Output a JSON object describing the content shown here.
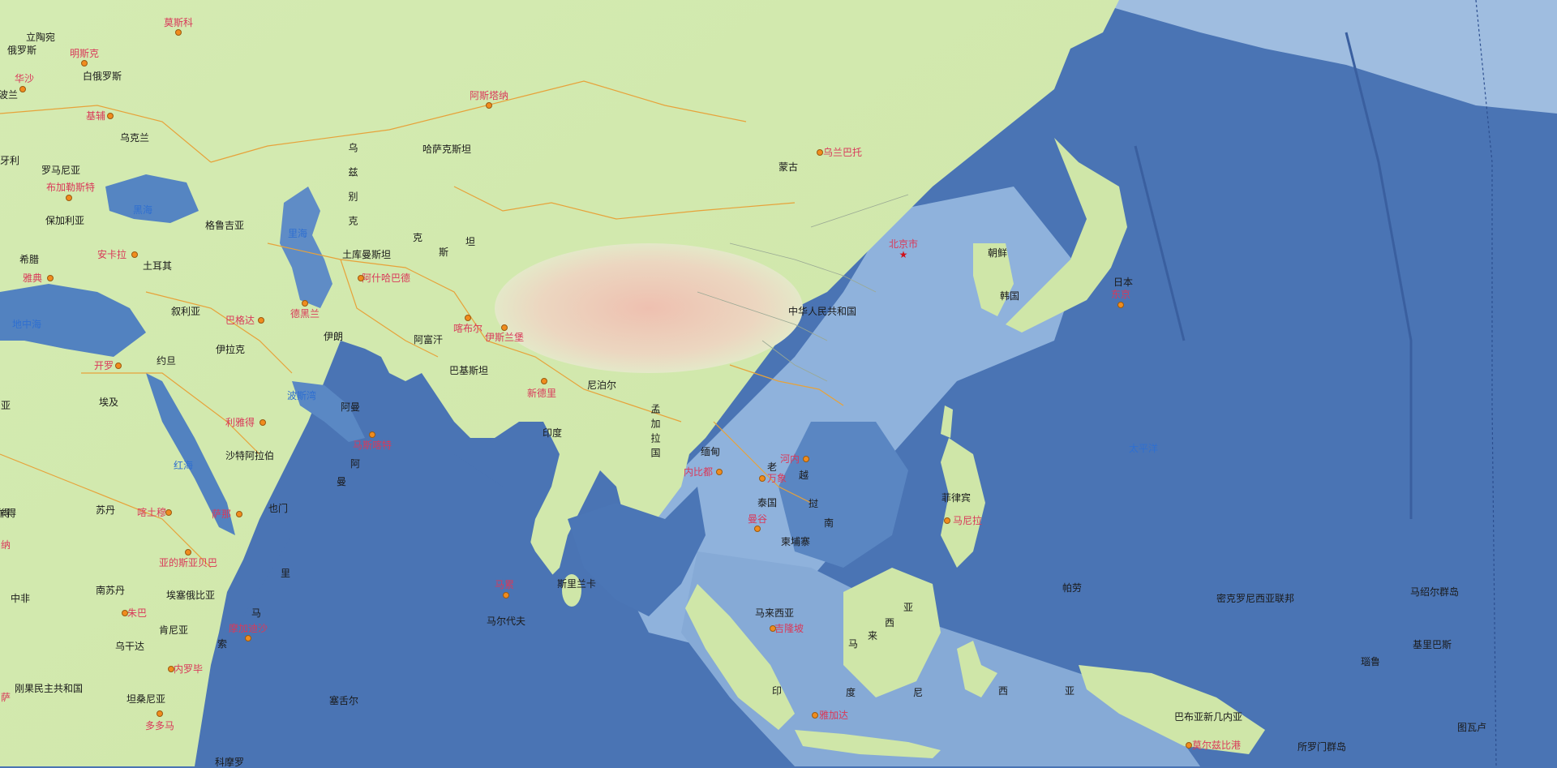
{
  "map": {
    "colors": {
      "ocean": "#4a74b4",
      "deep_ocean": "#3f67aa",
      "shelf": "#9fbfe0",
      "land": "#d8ecb6",
      "plateau": "#e8c9b6",
      "border": "#e7a23a",
      "country_text": "#1a1a1a",
      "city_text": "#d9395a",
      "water_text": "#2f6fd0"
    },
    "labels": {
      "countries": [
        {
          "id": "c01",
          "text": "立陶宛"
        },
        {
          "id": "c02",
          "text": "俄罗斯"
        },
        {
          "id": "c03",
          "text": "白俄罗斯"
        },
        {
          "id": "c04",
          "text": "波兰"
        },
        {
          "id": "c05",
          "text": "乌克兰"
        },
        {
          "id": "c06",
          "text": "牙利"
        },
        {
          "id": "c07",
          "text": "罗马尼亚"
        },
        {
          "id": "c08",
          "text": "保加利亚"
        },
        {
          "id": "c09",
          "text": "希腊"
        },
        {
          "id": "c10",
          "text": "格鲁吉亚"
        },
        {
          "id": "c11",
          "text": "土耳其"
        },
        {
          "id": "c12",
          "text": "叙利亚"
        },
        {
          "id": "c13",
          "text": "伊拉克"
        },
        {
          "id": "c14",
          "text": "约旦"
        },
        {
          "id": "c15",
          "text": "埃及"
        },
        {
          "id": "c16",
          "text": "沙特阿拉伯"
        },
        {
          "id": "c17",
          "text": "伊朗"
        },
        {
          "id": "c18",
          "text": "阿富汗"
        },
        {
          "id": "c19",
          "text": "巴基斯坦"
        },
        {
          "id": "c20",
          "text": "土库曼斯坦"
        },
        {
          "id": "c21",
          "text": "哈萨克斯坦"
        },
        {
          "id": "c22",
          "text": "蒙古"
        },
        {
          "id": "c23",
          "text": "中华人民共和国"
        },
        {
          "id": "c24",
          "text": "朝鲜"
        },
        {
          "id": "c25",
          "text": "韩国"
        },
        {
          "id": "c26",
          "text": "日本"
        },
        {
          "id": "c27",
          "text": "尼泊尔"
        },
        {
          "id": "c28",
          "text": "印度"
        },
        {
          "id": "c29",
          "text": "缅甸"
        },
        {
          "id": "c30",
          "text": "泰国"
        },
        {
          "id": "c31",
          "text": "柬埔寨"
        },
        {
          "id": "c32",
          "text": "菲律宾"
        },
        {
          "id": "c33",
          "text": "马来西亚"
        },
        {
          "id": "c34",
          "text": "斯里兰卡"
        },
        {
          "id": "c35",
          "text": "马尔代夫"
        },
        {
          "id": "c36",
          "text": "阿曼"
        },
        {
          "id": "c37",
          "text": "也门"
        },
        {
          "id": "c38",
          "text": "苏丹"
        },
        {
          "id": "c39",
          "text": "南苏丹"
        },
        {
          "id": "c40",
          "text": "埃塞俄比亚"
        },
        {
          "id": "c41",
          "text": "肯尼亚"
        },
        {
          "id": "c42",
          "text": "乌干达"
        },
        {
          "id": "c43",
          "text": "坦桑尼亚"
        },
        {
          "id": "c44",
          "text": "刚果民主共和国"
        },
        {
          "id": "c45",
          "text": "中非"
        },
        {
          "id": "c46",
          "text": "塞舌尔"
        },
        {
          "id": "c47",
          "text": "帕劳"
        },
        {
          "id": "c48",
          "text": "密克罗尼西亚联邦"
        },
        {
          "id": "c49",
          "text": "马绍尔群岛"
        },
        {
          "id": "c50",
          "text": "基里巴斯"
        },
        {
          "id": "c51",
          "text": "瑙鲁"
        },
        {
          "id": "c52",
          "text": "巴布亚新几内亚"
        },
        {
          "id": "c53",
          "text": "所罗门群岛"
        },
        {
          "id": "c54",
          "text": "图瓦卢"
        },
        {
          "id": "c55",
          "text": "乍得"
        },
        {
          "id": "c56",
          "text": "科摩罗"
        },
        {
          "id": "c57",
          "text": "乌兹别克"
        },
        {
          "id": "c58",
          "text": "老"
        },
        {
          "id": "c59",
          "text": "越"
        },
        {
          "id": "c60",
          "text": "挝"
        },
        {
          "id": "c61",
          "text": "南"
        },
        {
          "id": "c62",
          "text": "孟加拉国"
        },
        {
          "id": "c63",
          "text": "马"
        },
        {
          "id": "c64",
          "text": "索"
        },
        {
          "id": "c65",
          "text": "里"
        },
        {
          "id": "c66",
          "text": "亚"
        },
        {
          "id": "c67",
          "text": "西"
        },
        {
          "id": "c68",
          "text": "来"
        },
        {
          "id": "c69",
          "text": "马"
        },
        {
          "id": "c70",
          "text": "印"
        },
        {
          "id": "c71",
          "text": "度"
        },
        {
          "id": "c72",
          "text": "尼"
        },
        {
          "id": "c73",
          "text": "西"
        },
        {
          "id": "c74",
          "text": "亚"
        },
        {
          "id": "c75",
          "text": "阿"
        },
        {
          "id": "c76",
          "text": "曼"
        },
        {
          "id": "c77",
          "text": "克"
        },
        {
          "id": "c78",
          "text": "斯"
        },
        {
          "id": "c79",
          "text": "坦"
        }
      ],
      "cities": [
        {
          "id": "p01",
          "text": "莫斯科"
        },
        {
          "id": "p02",
          "text": "明斯克"
        },
        {
          "id": "p03",
          "text": "华沙"
        },
        {
          "id": "p04",
          "text": "基辅"
        },
        {
          "id": "p05",
          "text": "布加勒斯特"
        },
        {
          "id": "p06",
          "text": "安卡拉"
        },
        {
          "id": "p07",
          "text": "雅典"
        },
        {
          "id": "p08",
          "text": "巴格达"
        },
        {
          "id": "p09",
          "text": "德黑兰"
        },
        {
          "id": "p10",
          "text": "阿什哈巴德"
        },
        {
          "id": "p11",
          "text": "开罗"
        },
        {
          "id": "p12",
          "text": "利雅得"
        },
        {
          "id": "p13",
          "text": "马斯喀特"
        },
        {
          "id": "p14",
          "text": "萨那"
        },
        {
          "id": "p15",
          "text": "喀土穆"
        },
        {
          "id": "p16",
          "text": "亚的斯亚贝巴"
        },
        {
          "id": "p17",
          "text": "朱巴"
        },
        {
          "id": "p18",
          "text": "摩加迪沙"
        },
        {
          "id": "p19",
          "text": "内罗毕"
        },
        {
          "id": "p20",
          "text": "多多马"
        },
        {
          "id": "p21",
          "text": "阿斯塔纳"
        },
        {
          "id": "p22",
          "text": "乌兰巴托"
        },
        {
          "id": "p23",
          "text": "喀布尔"
        },
        {
          "id": "p24",
          "text": "伊斯兰堡"
        },
        {
          "id": "p25",
          "text": "新德里"
        },
        {
          "id": "p26",
          "text": "马累"
        },
        {
          "id": "p27",
          "text": "内比都"
        },
        {
          "id": "p28",
          "text": "河内"
        },
        {
          "id": "p29",
          "text": "万象"
        },
        {
          "id": "p30",
          "text": "曼谷"
        },
        {
          "id": "p31",
          "text": "吉隆坡"
        },
        {
          "id": "p32",
          "text": "雅加达"
        },
        {
          "id": "p33",
          "text": "马尼拉"
        },
        {
          "id": "p34",
          "text": "东京"
        },
        {
          "id": "p35",
          "text": "莫尔兹比港"
        },
        {
          "id": "p36",
          "text": "北京市"
        }
      ],
      "water": [
        {
          "id": "w01",
          "text": "黑海"
        },
        {
          "id": "w02",
          "text": "里海"
        },
        {
          "id": "w03",
          "text": "地中海"
        },
        {
          "id": "w04",
          "text": "波斯湾"
        },
        {
          "id": "w05",
          "text": "红海"
        },
        {
          "id": "w06",
          "text": "太平洋"
        }
      ],
      "edge_fragments": [
        {
          "id": "e01",
          "text": "得"
        },
        {
          "id": "e02",
          "text": "纳"
        },
        {
          "id": "e03",
          "text": "萨"
        },
        {
          "id": "e04",
          "text": "亚"
        }
      ]
    }
  }
}
